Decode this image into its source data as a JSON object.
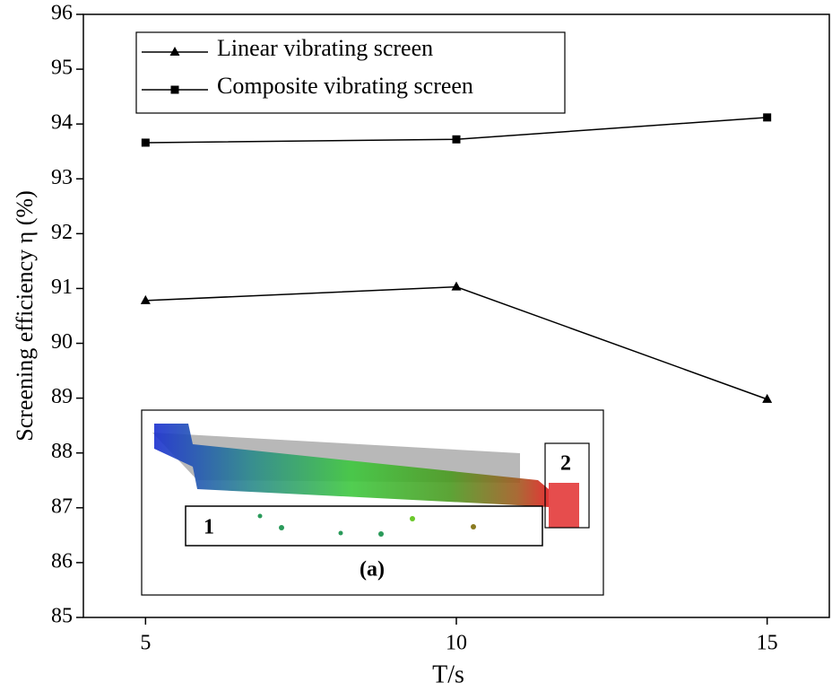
{
  "chart_data": {
    "type": "line",
    "x_label": "T/s",
    "y_label": "Screening efficiency η (%)",
    "x": [
      5,
      10,
      15
    ],
    "series": [
      {
        "name": "Linear vibrating screen",
        "color": "#000000",
        "marker": "triangle",
        "values": [
          90.78,
          91.03,
          88.98
        ]
      },
      {
        "name": "Composite vibrating screen",
        "color": "#000000",
        "marker": "square",
        "values": [
          93.66,
          93.72,
          94.12
        ]
      }
    ],
    "xlim": [
      4,
      16
    ],
    "xticks": [
      5,
      10,
      15
    ],
    "ylim": [
      85,
      96
    ],
    "yticks": [
      85,
      86,
      87,
      88,
      89,
      90,
      91,
      92,
      93,
      94,
      95,
      96
    ],
    "legend": "upper-left",
    "annotations": [
      "1",
      "2",
      "(a)"
    ]
  }
}
